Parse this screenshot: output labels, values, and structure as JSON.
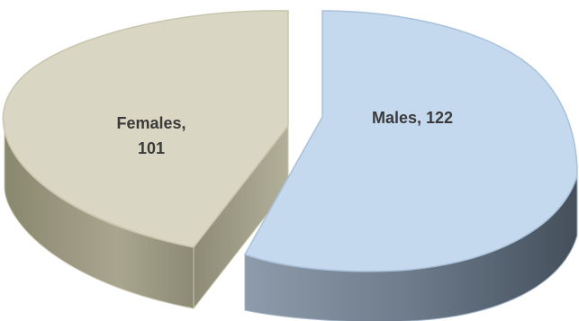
{
  "chart_data": {
    "type": "pie",
    "style": "3d-exploded",
    "title": "",
    "slices": [
      {
        "label": "Males",
        "value": 122,
        "display_line1": "Males, 122",
        "display_line2": "",
        "color_top": "#c5d9ee",
        "color_side": "#6f7f8f"
      },
      {
        "label": "Females",
        "value": 101,
        "display_line1": "Females,",
        "display_line2": "101",
        "color_top": "#d9d6c3",
        "color_side": "#9c9a85"
      }
    ],
    "legend": "none",
    "data_labels": "inside"
  }
}
